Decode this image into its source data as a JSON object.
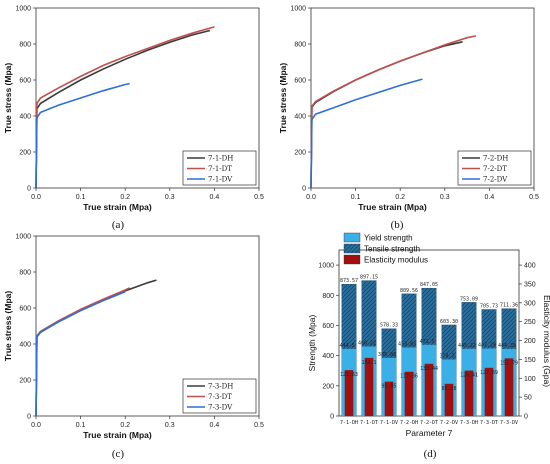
{
  "colors": {
    "DH": "#3a3a3a",
    "DT": "#c0504d",
    "DV": "#2e6fd8",
    "yield": "#3bb0e6",
    "tensile": "#2a6f9e",
    "elastic": "#a11010"
  },
  "chart_data": [
    {
      "type": "line",
      "panel_label": "(a)",
      "xlabel": "True strain (Mpa)",
      "ylabel": "True stress (Mpa)",
      "xlim": [
        0,
        0.5
      ],
      "ylim": [
        0,
        1000
      ],
      "xticks": [
        "0.0",
        "0.1",
        "0.2",
        "0.3",
        "0.4",
        "0.5"
      ],
      "yticks": [
        "0",
        "200",
        "400",
        "600",
        "800",
        "1000"
      ],
      "legend_position": "bottom-right",
      "series": [
        {
          "name": "7-1-DH",
          "key": "DH",
          "x": [
            0,
            0.002,
            0.01,
            0.05,
            0.1,
            0.15,
            0.2,
            0.25,
            0.3,
            0.35,
            0.39
          ],
          "y": [
            0,
            440,
            470,
            530,
            600,
            660,
            715,
            765,
            810,
            850,
            875
          ]
        },
        {
          "name": "7-1-DT",
          "key": "DT",
          "x": [
            0,
            0.002,
            0.01,
            0.05,
            0.1,
            0.15,
            0.2,
            0.25,
            0.3,
            0.35,
            0.4
          ],
          "y": [
            0,
            470,
            500,
            555,
            620,
            680,
            730,
            775,
            820,
            860,
            895
          ]
        },
        {
          "name": "7-1-DV",
          "key": "DV",
          "x": [
            0,
            0.002,
            0.01,
            0.05,
            0.1,
            0.15,
            0.2,
            0.21
          ],
          "y": [
            0,
            390,
            420,
            460,
            500,
            540,
            575,
            580
          ]
        }
      ]
    },
    {
      "type": "line",
      "panel_label": "(b)",
      "xlabel": "True strain (Mpa)",
      "ylabel": "True stress (Mpa)",
      "xlim": [
        0,
        0.5
      ],
      "ylim": [
        0,
        1000
      ],
      "xticks": [
        "0.0",
        "0.1",
        "0.2",
        "0.3",
        "0.4",
        "0.5"
      ],
      "yticks": [
        "0",
        "200",
        "400",
        "600",
        "800",
        "1000"
      ],
      "legend_position": "bottom-right",
      "series": [
        {
          "name": "7-2-DH",
          "key": "DH",
          "x": [
            0,
            0.002,
            0.01,
            0.05,
            0.1,
            0.15,
            0.2,
            0.25,
            0.3,
            0.34
          ],
          "y": [
            0,
            450,
            475,
            535,
            600,
            655,
            705,
            750,
            790,
            812
          ]
        },
        {
          "name": "7-2-DT",
          "key": "DT",
          "x": [
            0,
            0.002,
            0.01,
            0.05,
            0.1,
            0.15,
            0.2,
            0.25,
            0.3,
            0.35,
            0.37
          ],
          "y": [
            0,
            455,
            480,
            538,
            600,
            655,
            705,
            750,
            795,
            835,
            845
          ]
        },
        {
          "name": "7-2-DV",
          "key": "DV",
          "x": [
            0,
            0.002,
            0.01,
            0.05,
            0.1,
            0.15,
            0.2,
            0.25
          ],
          "y": [
            0,
            380,
            410,
            445,
            490,
            530,
            570,
            605
          ]
        }
      ]
    },
    {
      "type": "line",
      "panel_label": "(c)",
      "xlabel": "True strain (Mpa)",
      "ylabel": "True stress (Mpa)",
      "xlim": [
        0,
        0.5
      ],
      "ylim": [
        0,
        1000
      ],
      "xticks": [
        "0.0",
        "0.1",
        "0.2",
        "0.3",
        "0.4",
        "0.5"
      ],
      "yticks": [
        "0",
        "200",
        "400",
        "600",
        "800",
        "1000"
      ],
      "legend_position": "bottom-right",
      "series": [
        {
          "name": "7-3-DH",
          "key": "DH",
          "x": [
            0,
            0.002,
            0.01,
            0.05,
            0.1,
            0.15,
            0.2,
            0.25,
            0.27
          ],
          "y": [
            0,
            440,
            465,
            525,
            590,
            645,
            695,
            740,
            755
          ]
        },
        {
          "name": "7-3-DT",
          "key": "DT",
          "x": [
            0,
            0.002,
            0.01,
            0.05,
            0.1,
            0.15,
            0.2,
            0.21
          ],
          "y": [
            0,
            445,
            470,
            528,
            592,
            648,
            700,
            712
          ]
        },
        {
          "name": "7-3-DV",
          "key": "DV",
          "x": [
            0,
            0.002,
            0.01,
            0.05,
            0.1,
            0.15,
            0.2
          ],
          "y": [
            0,
            440,
            465,
            522,
            585,
            640,
            690
          ]
        }
      ]
    },
    {
      "type": "bar",
      "panel_label": "(d)",
      "xlabel": "Parameter 7",
      "ylabel": "Strength (Mpa)",
      "y2label": "Elasticity modulus (Gpa)",
      "ylim": [
        0,
        1100
      ],
      "y2lim": [
        0,
        440
      ],
      "yticks": [
        "0",
        "200",
        "400",
        "600",
        "800",
        "1000"
      ],
      "y2ticks": [
        "0",
        "50",
        "100",
        "150",
        "200",
        "250",
        "300",
        "350",
        "400"
      ],
      "legend_position": "top-left",
      "categories": [
        "7-1-DH",
        "7-1-DT",
        "7-1-DV",
        "7-2-DH",
        "7-2-DT",
        "7-2-DV",
        "7-3-DH",
        "7-3-DT",
        "7-3-DV"
      ],
      "series": [
        {
          "name": "Yield strength",
          "key": "yield",
          "values": [
            444.5,
            460.22,
            385.08,
            453.83,
            471.5,
            374.7,
            445.22,
            447.28,
            444.35
          ],
          "labels": [
            "444.5",
            "460.22",
            "385.08",
            "453.83",
            "471.5",
            "374.7",
            "445.22",
            "447.28",
            "444.35"
          ]
        },
        {
          "name": "Tensile strength",
          "key": "tensile",
          "values": [
            873.57,
            897.15,
            578.33,
            809.56,
            847.05,
            603.3,
            753.09,
            705.73,
            711.36
          ],
          "labels": [
            "873.57",
            "897.15",
            "578.33",
            "809.56",
            "847.05",
            "603.30",
            "753.09",
            "705.73",
            "711.36"
          ]
        },
        {
          "name": "Elasticity modulus",
          "key": "elastic",
          "values": [
            121.63,
            154.1,
            91.05,
            117.36,
            138.44,
            85.28,
            120.41,
            127.69,
            152.79
          ],
          "labels": [
            "121.63",
            "154.1",
            "91.05",
            "117.36",
            "138.44",
            "85.28",
            "120.41",
            "127.69",
            "152.79"
          ]
        }
      ]
    }
  ]
}
